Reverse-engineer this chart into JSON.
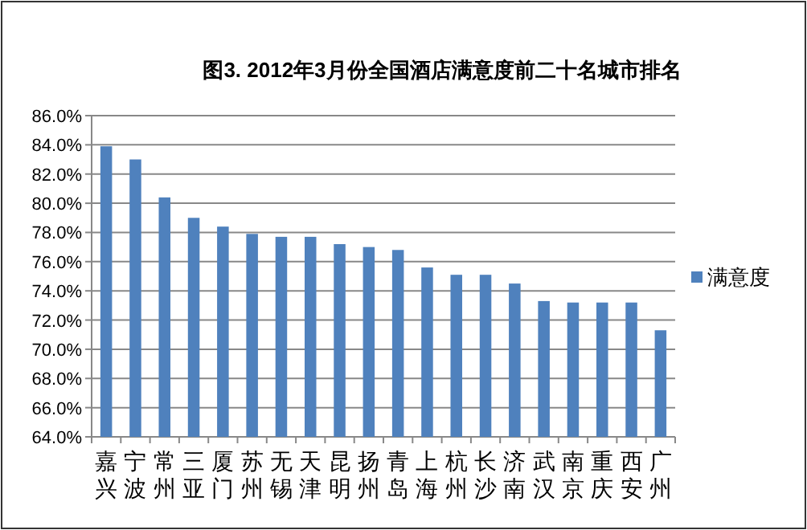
{
  "chart_data": {
    "type": "bar",
    "title": "图3. 2012年3月份全国酒店满意度前二十名城市排名",
    "categories": [
      "嘉兴",
      "宁波",
      "常州",
      "三亚",
      "厦门",
      "苏州",
      "无锡",
      "天津",
      "昆明",
      "扬州",
      "青岛",
      "上海",
      "杭州",
      "长沙",
      "济南",
      "武汉",
      "南京",
      "重庆",
      "西安",
      "广州"
    ],
    "series": [
      {
        "name": "满意度",
        "color": "#4f81bd",
        "values": [
          83.9,
          83.0,
          80.4,
          79.0,
          78.4,
          77.9,
          77.7,
          77.7,
          77.2,
          77.0,
          76.8,
          75.6,
          75.1,
          75.1,
          74.5,
          73.3,
          73.2,
          73.2,
          73.2,
          71.3
        ]
      }
    ],
    "ylim": [
      64,
      86
    ],
    "yticks": [
      {
        "value": 64,
        "label": "64.0%"
      },
      {
        "value": 66,
        "label": "66.0%"
      },
      {
        "value": 68,
        "label": "68.0%"
      },
      {
        "value": 70,
        "label": "70.0%"
      },
      {
        "value": 72,
        "label": "72.0%"
      },
      {
        "value": 74,
        "label": "74.0%"
      },
      {
        "value": 76,
        "label": "76.0%"
      },
      {
        "value": 78,
        "label": "78.0%"
      },
      {
        "value": 80,
        "label": "80.0%"
      },
      {
        "value": 82,
        "label": "82.0%"
      },
      {
        "value": 84,
        "label": "84.0%"
      },
      {
        "value": 86,
        "label": "86.0%"
      }
    ],
    "grid": "y",
    "legend": "right"
  }
}
